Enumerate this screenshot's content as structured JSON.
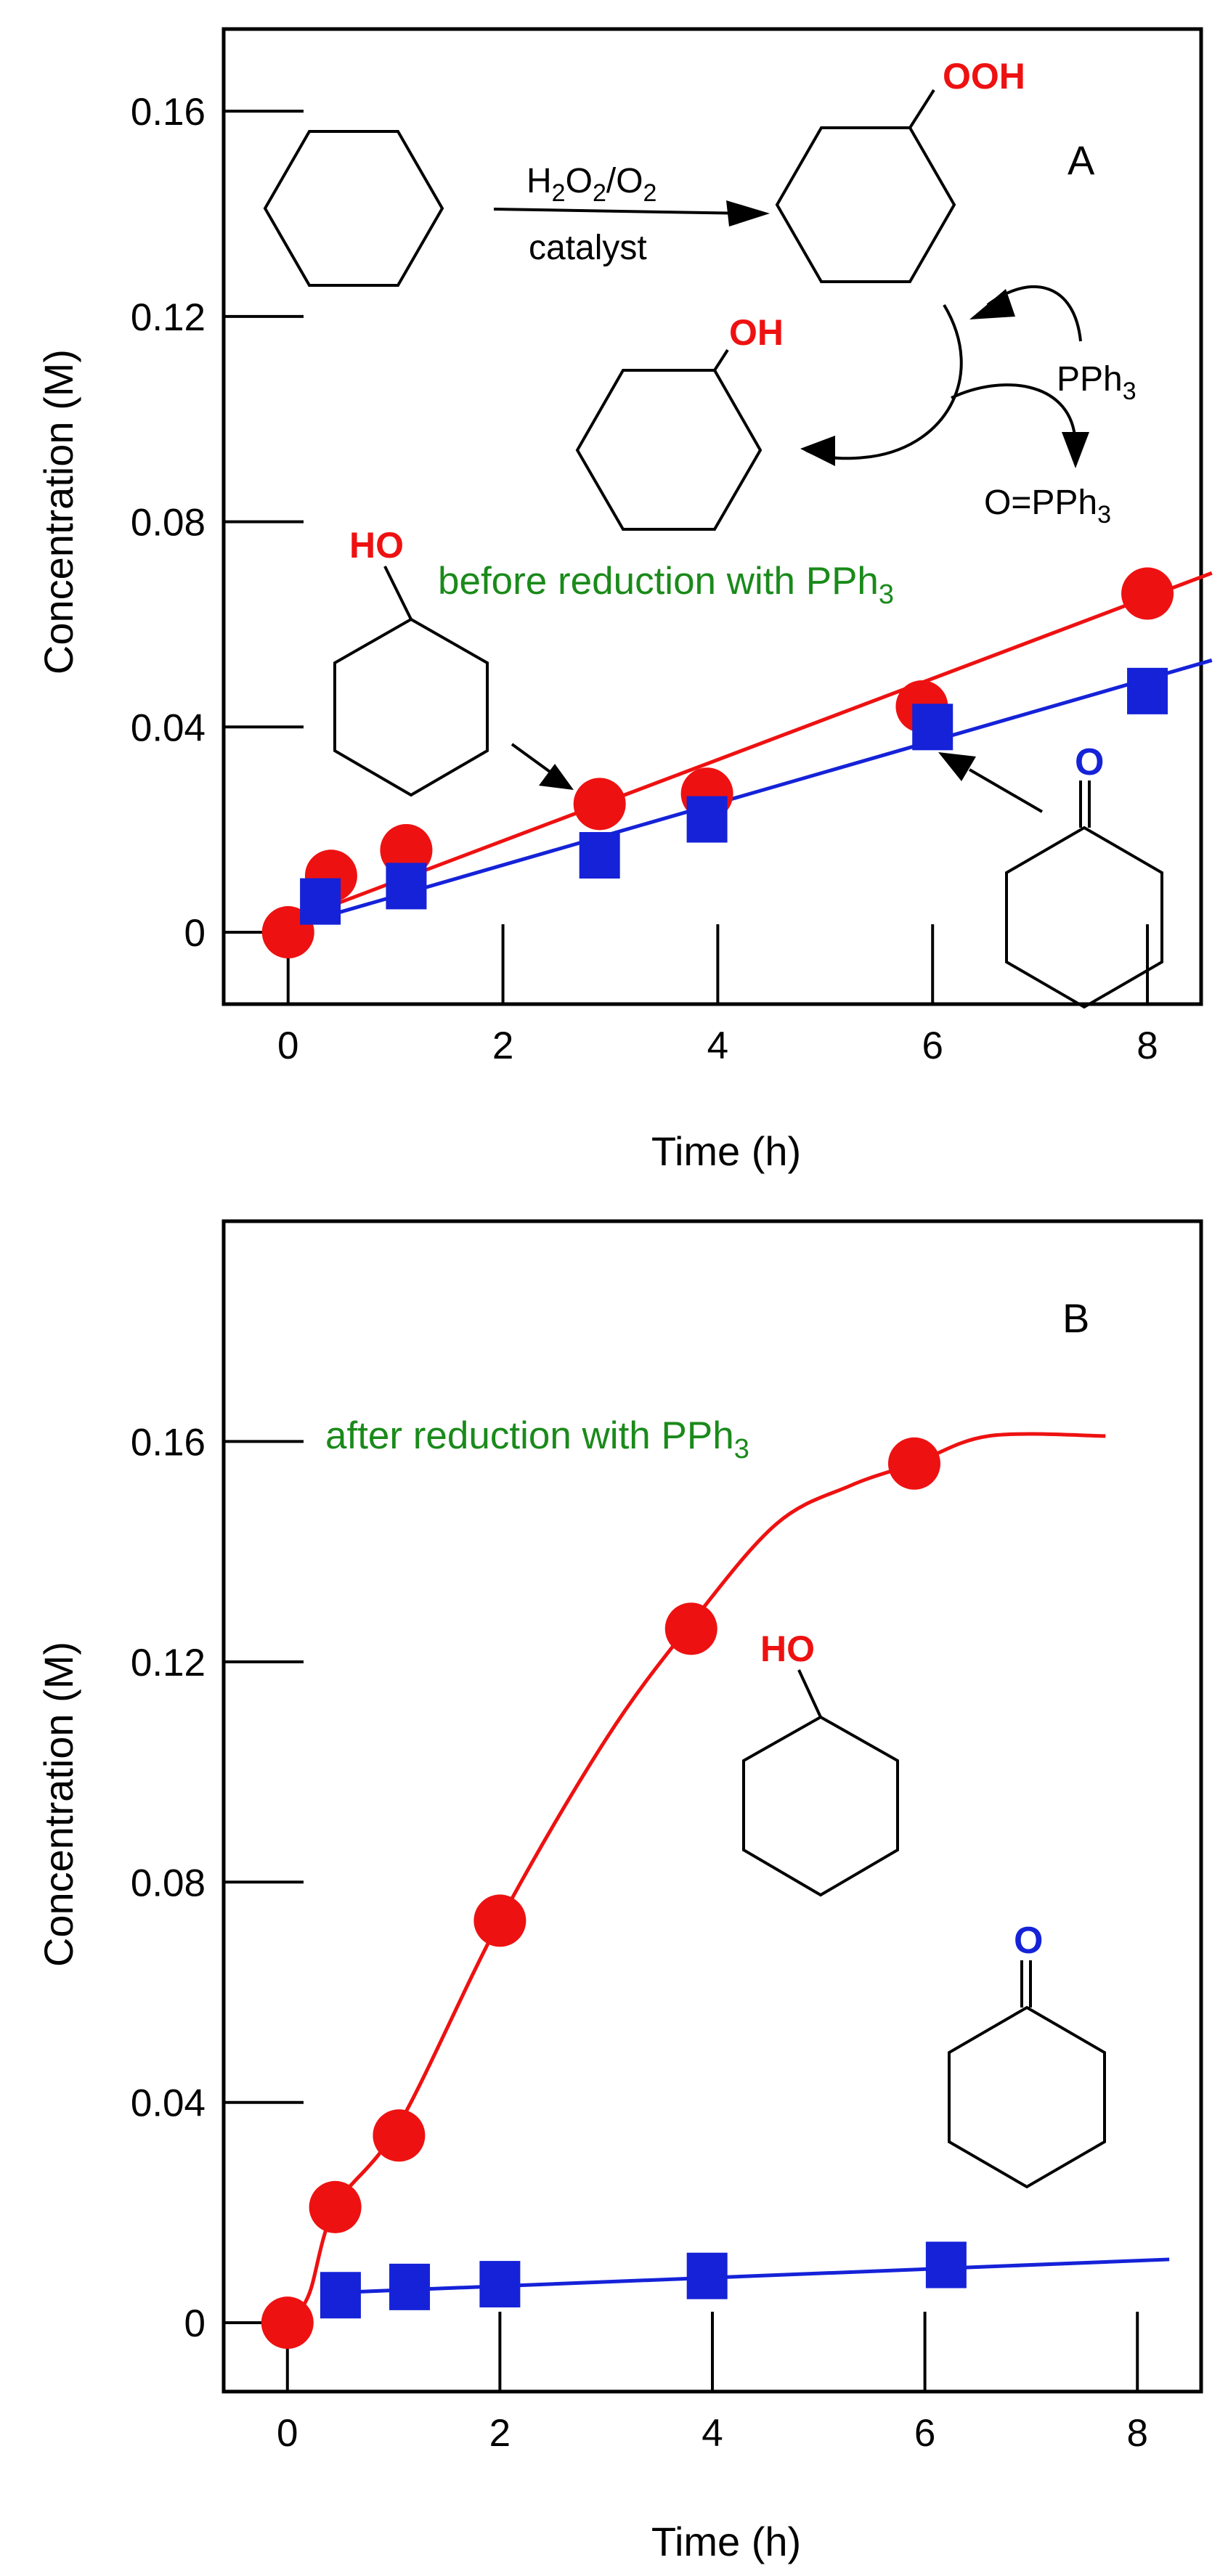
{
  "colors": {
    "alcohol": "#ee1111",
    "ketone": "#1522d8",
    "annotation": "#1a8a1a",
    "axis": "#000000"
  },
  "chart_data": [
    {
      "panel": "A",
      "type": "scatter",
      "annotation": "before reduction with PPh",
      "annotation_sub": "3",
      "xlabel": "Time (h)",
      "ylabel": "Concentration (M)",
      "xlim": [
        -0.6,
        8.5
      ],
      "ylim": [
        -0.014,
        0.176
      ],
      "xticks": [
        "0",
        "2",
        "4",
        "6",
        "8"
      ],
      "yticks": [
        "0",
        "0.04",
        "0.08",
        "0.12",
        "0.16"
      ],
      "series": [
        {
          "name": "cyclohexanol",
          "marker": "circle",
          "x": [
            0.0,
            0.4,
            1.1,
            2.9,
            3.9,
            5.9,
            8.0
          ],
          "y": [
            0.0,
            0.011,
            0.016,
            0.025,
            0.027,
            0.044,
            0.066
          ],
          "fit": {
            "x": [
              0.0,
              8.6
            ],
            "y": [
              0.002,
              0.07
            ]
          }
        },
        {
          "name": "cyclohexanone",
          "marker": "square",
          "x": [
            0.3,
            1.1,
            2.9,
            3.9,
            6.0,
            8.0
          ],
          "y": [
            0.006,
            0.009,
            0.015,
            0.022,
            0.04,
            0.047
          ],
          "fit": {
            "x": [
              0.0,
              8.6
            ],
            "y": [
              0.001,
              0.053
            ]
          }
        }
      ],
      "scheme": {
        "reagent": "H",
        "reagent_sub1": "2",
        "reagent_mid": "O",
        "reagent_sub2": "2",
        "reagent_tail": "/O",
        "reagent_sub3": "2",
        "catalyst": "catalyst",
        "ooh_label": "OOH",
        "oh_label": "OH",
        "pph3": "PPh",
        "pph3_sub": "3",
        "opph3": "O=PPh",
        "opph3_sub": "3",
        "ho_label": "HO",
        "o_label": "O"
      }
    },
    {
      "panel": "B",
      "type": "line",
      "annotation": "after reduction with PPh",
      "annotation_sub": "3",
      "xlabel": "Time (h)",
      "ylabel": "Concentration (M)",
      "xlim": [
        -0.6,
        8.6
      ],
      "ylim": [
        -0.0125,
        0.2
      ],
      "xticks": [
        "0",
        "2",
        "4",
        "6",
        "8"
      ],
      "yticks": [
        "0",
        "0.04",
        "0.08",
        "0.12",
        "0.16"
      ],
      "series": [
        {
          "name": "cyclohexanol",
          "marker": "circle",
          "x": [
            0.0,
            0.45,
            1.05,
            2.0,
            3.8,
            5.9
          ],
          "y": [
            0.0,
            0.021,
            0.034,
            0.073,
            0.126,
            0.156
          ],
          "curve": {
            "x": [
              0.0,
              0.2,
              0.45,
              1.05,
              2.0,
              3.0,
              3.8,
              4.6,
              5.3,
              5.9,
              6.6,
              7.7
            ],
            "y": [
              0.0,
              0.005,
              0.021,
              0.036,
              0.073,
              0.106,
              0.127,
              0.145,
              0.152,
              0.156,
              0.161,
              0.161
            ]
          }
        },
        {
          "name": "cyclohexanone",
          "marker": "square",
          "x": [
            0.5,
            1.15,
            2.0,
            3.95,
            6.2
          ],
          "y": [
            0.005,
            0.0065,
            0.007,
            0.0085,
            0.0105
          ],
          "fit": {
            "x": [
              0.5,
              8.3
            ],
            "y": [
              0.0055,
              0.0115
            ]
          }
        }
      ],
      "labels": {
        "ho_label": "HO",
        "o_label": "O"
      }
    }
  ]
}
